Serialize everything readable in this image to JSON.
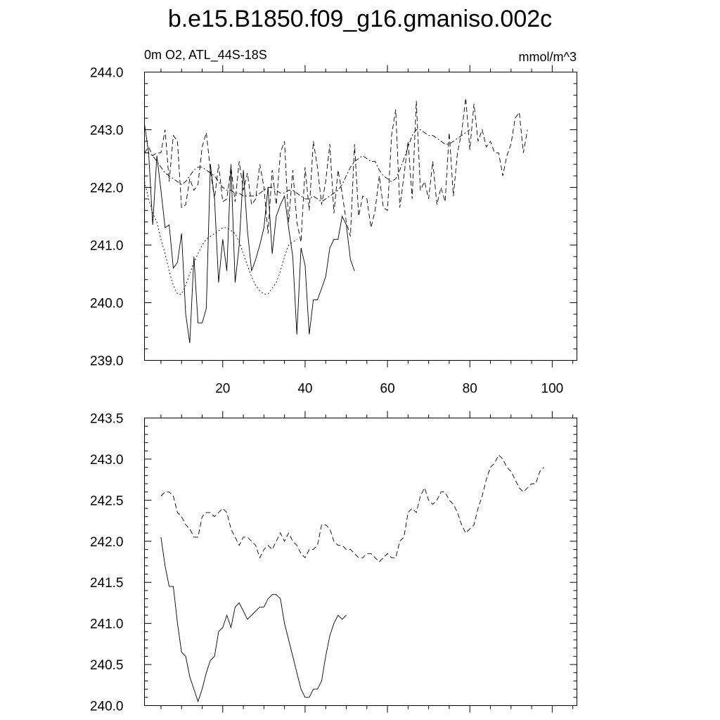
{
  "title": "b.e15.B1850.f09_g16.gmaniso.002c",
  "colors": {
    "line": "#000000",
    "background": "#ffffff"
  },
  "chart_data": [
    {
      "type": "line",
      "left_label": "0m O2, ATL_44S-18S",
      "right_label": "mmol/m^3",
      "xlim": [
        1,
        106
      ],
      "ylim": [
        239.0,
        244.0
      ],
      "x_ticks": [
        20,
        40,
        60,
        80,
        100
      ],
      "x_tick_labels": [
        "20",
        "40",
        "60",
        "80",
        "100"
      ],
      "y_ticks": [
        239.0,
        240.0,
        241.0,
        242.0,
        243.0,
        244.0
      ],
      "y_tick_labels": [
        "239.0",
        "240.0",
        "241.0",
        "242.0",
        "243.0",
        "244.0"
      ],
      "grid": false,
      "series": [
        {
          "style": "solid",
          "x_start": 1,
          "values": [
            243.1,
            242.6,
            241.35,
            242.55,
            241.95,
            241.3,
            241.35,
            240.6,
            240.7,
            241.2,
            239.8,
            239.3,
            240.8,
            239.65,
            239.65,
            239.9,
            242.4,
            241.8,
            240.35,
            241.1,
            240.55,
            242.4,
            240.35,
            241.0,
            242.3,
            241.25,
            240.55,
            240.75,
            241.0,
            241.3,
            242.0,
            240.85,
            241.5,
            241.7,
            241.85,
            241.3,
            240.8,
            239.45,
            240.95,
            240.65,
            239.45,
            240.05,
            240.05,
            240.25,
            240.45,
            240.95,
            241.1,
            241.1,
            241.5,
            241.35,
            240.75,
            240.55
          ]
        },
        {
          "style": "dashed",
          "x_start": 1,
          "values": [
            242.6,
            242.7,
            242.55,
            242.6,
            242.6,
            243.0,
            242.1,
            242.9,
            242.8,
            241.65,
            241.7,
            242.15,
            241.95,
            242.05,
            242.7,
            242.95,
            242.3,
            241.8,
            242.4,
            241.75,
            241.8,
            242.35,
            241.75,
            242.45,
            241.95,
            242.25,
            241.7,
            241.8,
            242.4,
            242.0,
            241.2,
            242.3,
            241.7,
            242.6,
            242.8,
            241.4,
            242.3,
            241.4,
            241.05,
            242.35,
            241.6,
            242.8,
            242.35,
            241.7,
            242.1,
            242.75,
            241.55,
            242.3,
            241.9,
            241.4,
            241.15,
            242.75,
            241.5,
            241.85,
            241.8,
            241.3,
            241.6,
            242.2,
            241.65,
            241.6,
            242.9,
            243.35,
            241.65,
            242.2,
            242.8,
            241.8,
            243.5,
            241.95,
            242.1,
            241.8,
            242.45,
            241.7,
            242.0,
            241.75,
            242.95,
            241.85,
            242.6,
            242.95,
            243.55,
            242.65,
            243.45,
            242.8,
            243.0,
            242.7,
            242.8,
            242.6,
            242.6,
            242.2,
            242.55,
            242.75,
            243.2,
            243.3,
            242.6,
            243.0
          ]
        },
        {
          "style": "dash-dot",
          "x_start": 1,
          "values": [
            242.6,
            242.6,
            242.55,
            242.45,
            242.35,
            242.25,
            242.2,
            242.15,
            242.1,
            242.05,
            242.1,
            242.2,
            242.3,
            242.35,
            242.35,
            242.3,
            242.25,
            242.2,
            242.1,
            242.0,
            241.95,
            241.95,
            241.9,
            241.9,
            241.85,
            241.85,
            241.85,
            241.85,
            241.9,
            241.95,
            242.0,
            242.0,
            241.95,
            241.9,
            241.9,
            241.95,
            241.95,
            241.9,
            241.85,
            241.8,
            241.8,
            241.85,
            241.8,
            241.75,
            241.8,
            241.85,
            241.9,
            241.95,
            242.05,
            242.2,
            242.35,
            242.45,
            242.5,
            242.55,
            242.5,
            242.45,
            242.45,
            242.3,
            242.2,
            242.15,
            242.1,
            242.15,
            242.3,
            242.5,
            242.7,
            242.9,
            243.0,
            243.0,
            242.95,
            242.9,
            242.9,
            242.85,
            242.8,
            242.75,
            242.75,
            242.8,
            242.85,
            242.9,
            242.95,
            243.0
          ]
        },
        {
          "style": "dotted",
          "x_start": 1,
          "values": [
            242.1,
            241.8,
            241.55,
            241.4,
            241.1,
            240.85,
            240.55,
            240.3,
            240.15,
            240.15,
            240.3,
            240.5,
            240.7,
            240.85,
            241.0,
            241.1,
            241.15,
            241.2,
            241.25,
            241.3,
            241.3,
            241.25,
            241.2,
            241.05,
            240.85,
            240.65,
            240.45,
            240.3,
            240.2,
            240.15,
            240.15,
            240.25,
            240.35,
            240.55,
            240.8,
            241.0,
            241.05,
            241.1
          ]
        }
      ]
    },
    {
      "type": "line",
      "xlim": [
        1,
        106
      ],
      "ylim": [
        240.0,
        243.5
      ],
      "y_ticks": [
        240.0,
        240.5,
        241.0,
        241.5,
        242.0,
        242.5,
        243.0,
        243.5
      ],
      "y_tick_labels": [
        "240.0",
        "240.5",
        "241.0",
        "241.5",
        "242.0",
        "242.5",
        "243.0",
        "243.5"
      ],
      "grid": false,
      "series": [
        {
          "style": "solid",
          "x_start": 5,
          "values": [
            242.05,
            241.7,
            241.45,
            241.45,
            241.0,
            240.65,
            240.6,
            240.35,
            240.2,
            240.05,
            240.2,
            240.4,
            240.55,
            240.6,
            240.9,
            240.95,
            241.1,
            240.95,
            241.2,
            241.25,
            241.15,
            241.05,
            241.1,
            241.15,
            241.2,
            241.2,
            241.3,
            241.35,
            241.35,
            241.3,
            241.0,
            240.8,
            240.6,
            240.4,
            240.2,
            240.1,
            240.1,
            240.2,
            240.2,
            240.3,
            240.6,
            240.85,
            241.0,
            241.1,
            241.05,
            241.1
          ]
        },
        {
          "style": "dashed",
          "x_start": 5,
          "values": [
            242.55,
            242.6,
            242.6,
            242.55,
            242.35,
            242.3,
            242.2,
            242.15,
            242.05,
            242.05,
            242.3,
            242.35,
            242.35,
            242.3,
            242.35,
            242.4,
            242.35,
            242.15,
            242.05,
            241.95,
            242.05,
            242.05,
            242.0,
            241.95,
            241.8,
            241.9,
            241.95,
            241.9,
            242.0,
            242.1,
            242.0,
            242.1,
            242.0,
            241.95,
            241.85,
            241.8,
            241.9,
            241.9,
            241.95,
            242.2,
            242.2,
            242.15,
            242.0,
            241.95,
            241.95,
            241.9,
            241.9,
            241.85,
            241.8,
            241.8,
            241.85,
            241.85,
            241.8,
            241.75,
            241.8,
            241.85,
            241.8,
            241.8,
            242.0,
            242.05,
            242.35,
            242.4,
            242.35,
            242.55,
            242.65,
            242.5,
            242.45,
            242.5,
            242.6,
            242.6,
            242.5,
            242.45,
            242.35,
            242.2,
            242.1,
            242.15,
            242.2,
            242.4,
            242.55,
            242.75,
            242.9,
            242.95,
            243.05,
            243.0,
            242.9,
            242.85,
            242.75,
            242.65,
            242.6,
            242.65,
            242.7,
            242.7,
            242.85,
            242.9
          ]
        }
      ]
    }
  ]
}
